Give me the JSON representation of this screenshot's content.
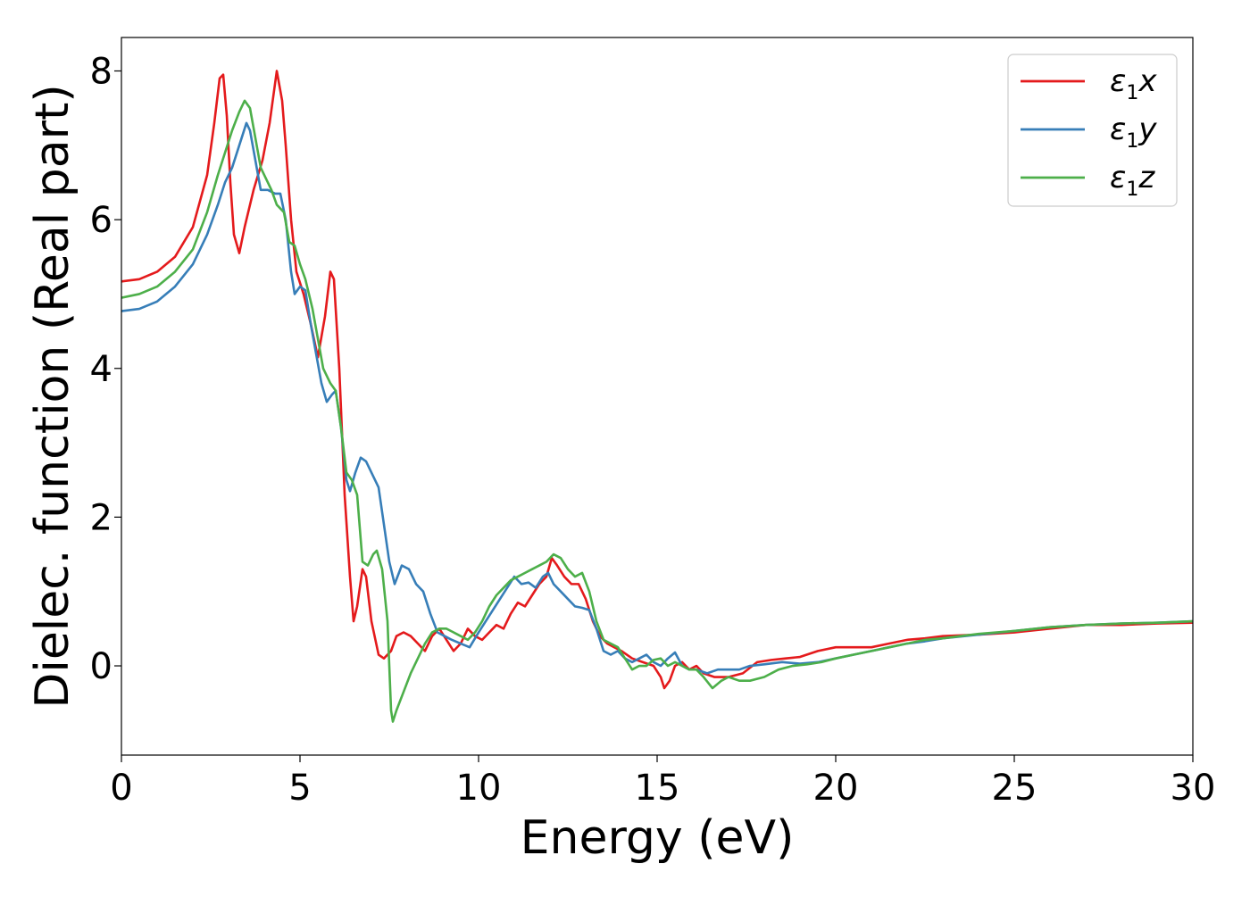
{
  "chart_data": {
    "type": "line",
    "xlabel": "Energy (eV)",
    "ylabel": "Dielec. function (Real part)",
    "xlim": [
      0,
      30
    ],
    "ylim": [
      -1.2,
      8.45
    ],
    "xticks": [
      0,
      5,
      10,
      15,
      20,
      25,
      30
    ],
    "yticks": [
      0,
      2,
      4,
      6,
      8
    ],
    "grid": false,
    "legend_position": "top-right",
    "series": [
      {
        "name": "ε1x",
        "legend": {
          "symbol": "ε",
          "sub": "1",
          "axis": "x"
        },
        "color": "#e41a1c",
        "points": [
          [
            0,
            5.17
          ],
          [
            0.5,
            5.2
          ],
          [
            1,
            5.3
          ],
          [
            1.5,
            5.5
          ],
          [
            2,
            5.9
          ],
          [
            2.4,
            6.6
          ],
          [
            2.6,
            7.3
          ],
          [
            2.75,
            7.9
          ],
          [
            2.85,
            7.95
          ],
          [
            2.95,
            7.4
          ],
          [
            3.05,
            6.5
          ],
          [
            3.15,
            5.8
          ],
          [
            3.3,
            5.55
          ],
          [
            3.45,
            5.9
          ],
          [
            3.7,
            6.4
          ],
          [
            3.95,
            6.8
          ],
          [
            4.15,
            7.3
          ],
          [
            4.35,
            8.0
          ],
          [
            4.5,
            7.6
          ],
          [
            4.6,
            7.0
          ],
          [
            4.75,
            6.0
          ],
          [
            4.9,
            5.3
          ],
          [
            5.1,
            5.0
          ],
          [
            5.3,
            4.6
          ],
          [
            5.5,
            4.15
          ],
          [
            5.7,
            4.7
          ],
          [
            5.85,
            5.3
          ],
          [
            5.95,
            5.2
          ],
          [
            6.1,
            4.0
          ],
          [
            6.25,
            2.3
          ],
          [
            6.4,
            1.2
          ],
          [
            6.5,
            0.6
          ],
          [
            6.6,
            0.8
          ],
          [
            6.75,
            1.3
          ],
          [
            6.85,
            1.2
          ],
          [
            7.0,
            0.6
          ],
          [
            7.2,
            0.15
          ],
          [
            7.35,
            0.1
          ],
          [
            7.55,
            0.2
          ],
          [
            7.7,
            0.4
          ],
          [
            7.9,
            0.45
          ],
          [
            8.1,
            0.4
          ],
          [
            8.3,
            0.3
          ],
          [
            8.5,
            0.2
          ],
          [
            8.7,
            0.4
          ],
          [
            8.9,
            0.5
          ],
          [
            9.1,
            0.35
          ],
          [
            9.3,
            0.2
          ],
          [
            9.5,
            0.3
          ],
          [
            9.7,
            0.5
          ],
          [
            9.9,
            0.4
          ],
          [
            10.1,
            0.35
          ],
          [
            10.3,
            0.45
          ],
          [
            10.5,
            0.55
          ],
          [
            10.7,
            0.5
          ],
          [
            10.9,
            0.7
          ],
          [
            11.1,
            0.85
          ],
          [
            11.3,
            0.8
          ],
          [
            11.5,
            0.95
          ],
          [
            11.7,
            1.1
          ],
          [
            11.9,
            1.2
          ],
          [
            12.05,
            1.45
          ],
          [
            12.2,
            1.35
          ],
          [
            12.4,
            1.2
          ],
          [
            12.6,
            1.1
          ],
          [
            12.8,
            1.1
          ],
          [
            13.0,
            0.9
          ],
          [
            13.2,
            0.6
          ],
          [
            13.4,
            0.4
          ],
          [
            13.6,
            0.3
          ],
          [
            13.8,
            0.25
          ],
          [
            14.0,
            0.2
          ],
          [
            14.3,
            0.1
          ],
          [
            14.6,
            0.05
          ],
          [
            14.9,
            0.0
          ],
          [
            15.1,
            -0.15
          ],
          [
            15.2,
            -0.3
          ],
          [
            15.35,
            -0.2
          ],
          [
            15.5,
            0.0
          ],
          [
            15.7,
            0.05
          ],
          [
            15.9,
            -0.05
          ],
          [
            16.1,
            0.0
          ],
          [
            16.3,
            -0.1
          ],
          [
            16.6,
            -0.15
          ],
          [
            17.0,
            -0.15
          ],
          [
            17.4,
            -0.1
          ],
          [
            17.8,
            0.05
          ],
          [
            18.2,
            0.08
          ],
          [
            18.6,
            0.1
          ],
          [
            19.0,
            0.12
          ],
          [
            19.5,
            0.2
          ],
          [
            20.0,
            0.25
          ],
          [
            20.5,
            0.25
          ],
          [
            21.0,
            0.25
          ],
          [
            21.5,
            0.3
          ],
          [
            22.0,
            0.35
          ],
          [
            22.5,
            0.37
          ],
          [
            23.0,
            0.4
          ],
          [
            24.0,
            0.42
          ],
          [
            25.0,
            0.45
          ],
          [
            26.0,
            0.5
          ],
          [
            27.0,
            0.55
          ],
          [
            28.0,
            0.55
          ],
          [
            29.0,
            0.57
          ],
          [
            30.0,
            0.58
          ]
        ]
      },
      {
        "name": "ε1y",
        "legend": {
          "symbol": "ε",
          "sub": "1",
          "axis": "y"
        },
        "color": "#377eb8",
        "points": [
          [
            0,
            4.77
          ],
          [
            0.5,
            4.8
          ],
          [
            1,
            4.9
          ],
          [
            1.5,
            5.1
          ],
          [
            2,
            5.4
          ],
          [
            2.4,
            5.8
          ],
          [
            2.7,
            6.2
          ],
          [
            2.9,
            6.5
          ],
          [
            3.1,
            6.7
          ],
          [
            3.3,
            7.0
          ],
          [
            3.5,
            7.3
          ],
          [
            3.6,
            7.2
          ],
          [
            3.75,
            6.8
          ],
          [
            3.9,
            6.4
          ],
          [
            4.1,
            6.4
          ],
          [
            4.3,
            6.35
          ],
          [
            4.45,
            6.35
          ],
          [
            4.6,
            6.0
          ],
          [
            4.75,
            5.3
          ],
          [
            4.85,
            5.0
          ],
          [
            5.0,
            5.1
          ],
          [
            5.15,
            5.05
          ],
          [
            5.3,
            4.6
          ],
          [
            5.45,
            4.2
          ],
          [
            5.6,
            3.8
          ],
          [
            5.75,
            3.55
          ],
          [
            5.9,
            3.65
          ],
          [
            6.0,
            3.7
          ],
          [
            6.15,
            3.2
          ],
          [
            6.3,
            2.5
          ],
          [
            6.4,
            2.35
          ],
          [
            6.55,
            2.6
          ],
          [
            6.7,
            2.8
          ],
          [
            6.85,
            2.75
          ],
          [
            7.0,
            2.6
          ],
          [
            7.2,
            2.4
          ],
          [
            7.35,
            1.9
          ],
          [
            7.5,
            1.4
          ],
          [
            7.65,
            1.1
          ],
          [
            7.85,
            1.35
          ],
          [
            8.05,
            1.3
          ],
          [
            8.25,
            1.1
          ],
          [
            8.45,
            1.0
          ],
          [
            8.65,
            0.7
          ],
          [
            8.85,
            0.45
          ],
          [
            9.05,
            0.4
          ],
          [
            9.25,
            0.35
          ],
          [
            9.5,
            0.3
          ],
          [
            9.75,
            0.25
          ],
          [
            10.0,
            0.45
          ],
          [
            10.2,
            0.6
          ],
          [
            10.4,
            0.75
          ],
          [
            10.6,
            0.9
          ],
          [
            10.8,
            1.05
          ],
          [
            11.0,
            1.2
          ],
          [
            11.2,
            1.1
          ],
          [
            11.4,
            1.12
          ],
          [
            11.6,
            1.05
          ],
          [
            11.8,
            1.2
          ],
          [
            11.95,
            1.25
          ],
          [
            12.1,
            1.1
          ],
          [
            12.3,
            1.0
          ],
          [
            12.5,
            0.9
          ],
          [
            12.7,
            0.8
          ],
          [
            12.9,
            0.78
          ],
          [
            13.1,
            0.75
          ],
          [
            13.3,
            0.5
          ],
          [
            13.5,
            0.2
          ],
          [
            13.7,
            0.15
          ],
          [
            13.9,
            0.2
          ],
          [
            14.1,
            0.1
          ],
          [
            14.3,
            0.05
          ],
          [
            14.5,
            0.1
          ],
          [
            14.7,
            0.15
          ],
          [
            14.9,
            0.05
          ],
          [
            15.1,
            0.0
          ],
          [
            15.3,
            0.1
          ],
          [
            15.5,
            0.18
          ],
          [
            15.7,
            0.0
          ],
          [
            15.9,
            -0.05
          ],
          [
            16.1,
            -0.05
          ],
          [
            16.4,
            -0.1
          ],
          [
            16.7,
            -0.05
          ],
          [
            17.0,
            -0.05
          ],
          [
            17.3,
            -0.05
          ],
          [
            17.6,
            0.0
          ],
          [
            18.0,
            0.02
          ],
          [
            18.5,
            0.05
          ],
          [
            19.0,
            0.03
          ],
          [
            19.5,
            0.05
          ],
          [
            20.0,
            0.1
          ],
          [
            20.5,
            0.15
          ],
          [
            21.0,
            0.2
          ],
          [
            21.5,
            0.25
          ],
          [
            22.0,
            0.3
          ],
          [
            22.5,
            0.33
          ],
          [
            23.0,
            0.37
          ],
          [
            24.0,
            0.42
          ],
          [
            25.0,
            0.47
          ],
          [
            26.0,
            0.52
          ],
          [
            27.0,
            0.55
          ],
          [
            28.0,
            0.57
          ],
          [
            29.0,
            0.58
          ],
          [
            30.0,
            0.6
          ]
        ]
      },
      {
        "name": "ε1z",
        "legend": {
          "symbol": "ε",
          "sub": "1",
          "axis": "z"
        },
        "color": "#4daf4a",
        "points": [
          [
            0,
            4.95
          ],
          [
            0.5,
            5.0
          ],
          [
            1,
            5.1
          ],
          [
            1.5,
            5.3
          ],
          [
            2,
            5.6
          ],
          [
            2.4,
            6.1
          ],
          [
            2.7,
            6.6
          ],
          [
            2.9,
            6.9
          ],
          [
            3.1,
            7.2
          ],
          [
            3.3,
            7.45
          ],
          [
            3.45,
            7.6
          ],
          [
            3.6,
            7.5
          ],
          [
            3.75,
            7.1
          ],
          [
            3.9,
            6.7
          ],
          [
            4.05,
            6.55
          ],
          [
            4.2,
            6.4
          ],
          [
            4.35,
            6.2
          ],
          [
            4.55,
            6.1
          ],
          [
            4.7,
            5.7
          ],
          [
            4.85,
            5.65
          ],
          [
            5.0,
            5.4
          ],
          [
            5.15,
            5.2
          ],
          [
            5.35,
            4.8
          ],
          [
            5.5,
            4.4
          ],
          [
            5.65,
            4.0
          ],
          [
            5.85,
            3.8
          ],
          [
            6.0,
            3.7
          ],
          [
            6.15,
            3.2
          ],
          [
            6.3,
            2.6
          ],
          [
            6.45,
            2.5
          ],
          [
            6.6,
            2.3
          ],
          [
            6.75,
            1.4
          ],
          [
            6.9,
            1.35
          ],
          [
            7.05,
            1.5
          ],
          [
            7.15,
            1.55
          ],
          [
            7.3,
            1.3
          ],
          [
            7.45,
            0.6
          ],
          [
            7.55,
            -0.6
          ],
          [
            7.6,
            -0.75
          ],
          [
            7.7,
            -0.6
          ],
          [
            7.9,
            -0.35
          ],
          [
            8.1,
            -0.1
          ],
          [
            8.3,
            0.1
          ],
          [
            8.5,
            0.3
          ],
          [
            8.7,
            0.45
          ],
          [
            8.9,
            0.5
          ],
          [
            9.1,
            0.5
          ],
          [
            9.3,
            0.45
          ],
          [
            9.5,
            0.4
          ],
          [
            9.7,
            0.35
          ],
          [
            9.9,
            0.45
          ],
          [
            10.1,
            0.6
          ],
          [
            10.3,
            0.8
          ],
          [
            10.5,
            0.95
          ],
          [
            10.7,
            1.05
          ],
          [
            10.9,
            1.15
          ],
          [
            11.1,
            1.2
          ],
          [
            11.3,
            1.25
          ],
          [
            11.5,
            1.3
          ],
          [
            11.7,
            1.35
          ],
          [
            11.9,
            1.4
          ],
          [
            12.1,
            1.5
          ],
          [
            12.3,
            1.45
          ],
          [
            12.5,
            1.3
          ],
          [
            12.7,
            1.2
          ],
          [
            12.9,
            1.25
          ],
          [
            13.1,
            1.0
          ],
          [
            13.3,
            0.6
          ],
          [
            13.5,
            0.35
          ],
          [
            13.7,
            0.3
          ],
          [
            13.9,
            0.25
          ],
          [
            14.1,
            0.1
          ],
          [
            14.3,
            -0.05
          ],
          [
            14.5,
            0.0
          ],
          [
            14.7,
            0.0
          ],
          [
            14.9,
            0.08
          ],
          [
            15.1,
            0.1
          ],
          [
            15.3,
            0.0
          ],
          [
            15.5,
            0.05
          ],
          [
            15.7,
            0.0
          ],
          [
            15.9,
            -0.05
          ],
          [
            16.1,
            -0.05
          ],
          [
            16.3,
            -0.15
          ],
          [
            16.55,
            -0.3
          ],
          [
            16.8,
            -0.2
          ],
          [
            17.0,
            -0.15
          ],
          [
            17.3,
            -0.2
          ],
          [
            17.6,
            -0.2
          ],
          [
            18.0,
            -0.15
          ],
          [
            18.4,
            -0.05
          ],
          [
            18.8,
            0.0
          ],
          [
            19.2,
            0.02
          ],
          [
            19.6,
            0.05
          ],
          [
            20.0,
            0.1
          ],
          [
            20.5,
            0.15
          ],
          [
            21.0,
            0.2
          ],
          [
            21.5,
            0.25
          ],
          [
            22.0,
            0.3
          ],
          [
            22.5,
            0.35
          ],
          [
            23.0,
            0.37
          ],
          [
            24.0,
            0.43
          ],
          [
            25.0,
            0.47
          ],
          [
            26.0,
            0.52
          ],
          [
            27.0,
            0.55
          ],
          [
            28.0,
            0.57
          ],
          [
            29.0,
            0.58
          ],
          [
            30.0,
            0.6
          ]
        ]
      }
    ]
  }
}
